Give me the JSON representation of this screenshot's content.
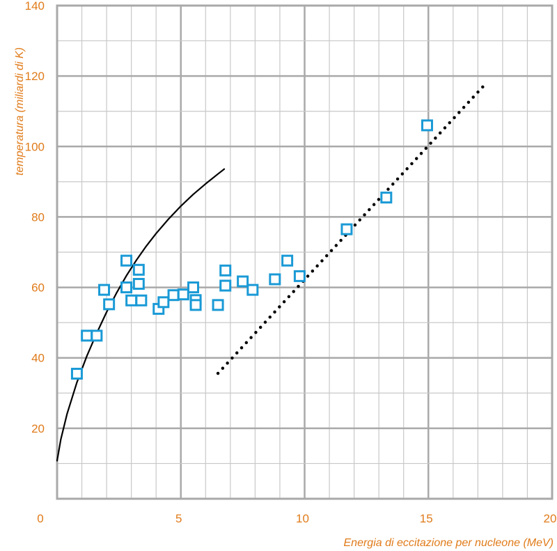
{
  "chart_data": {
    "type": "scatter",
    "title": "",
    "xlabel": "Energia di eccitazione per nucleone (MeV)",
    "ylabel": "temperatura (miliardi di K)",
    "xlim": [
      0,
      20
    ],
    "ylim": [
      0,
      140
    ],
    "x_ticks": [
      0,
      5,
      10,
      15,
      20
    ],
    "y_ticks": [
      20,
      40,
      60,
      80,
      100,
      120,
      140
    ],
    "grid": true,
    "colors": {
      "axis_text": "#e07b1a",
      "markers": "#1a9ad6",
      "grid": "#c8c8c8",
      "grid_major": "#a9a9a9",
      "curve": "#000000"
    },
    "series": [
      {
        "kind": "markers",
        "marker": "hollow-square",
        "points": [
          [
            0.8,
            35.5
          ],
          [
            1.2,
            46.3
          ],
          [
            1.6,
            46.3
          ],
          [
            1.9,
            59.3
          ],
          [
            2.1,
            55.2
          ],
          [
            2.8,
            67.6
          ],
          [
            2.8,
            60.0
          ],
          [
            3.0,
            56.3
          ],
          [
            3.3,
            65.0
          ],
          [
            3.3,
            61.0
          ],
          [
            3.4,
            56.3
          ],
          [
            4.1,
            53.9
          ],
          [
            4.3,
            55.8
          ],
          [
            4.7,
            57.8
          ],
          [
            5.1,
            58.0
          ],
          [
            5.5,
            60.0
          ],
          [
            5.6,
            56.4
          ],
          [
            5.6,
            55.0
          ],
          [
            6.5,
            55.0
          ],
          [
            6.8,
            64.8
          ],
          [
            6.8,
            60.5
          ],
          [
            7.5,
            61.7
          ],
          [
            7.9,
            59.3
          ],
          [
            8.8,
            62.3
          ],
          [
            9.3,
            67.6
          ],
          [
            9.8,
            63.2
          ],
          [
            11.7,
            76.5
          ],
          [
            13.3,
            85.5
          ],
          [
            14.95,
            106.0
          ]
        ]
      },
      {
        "kind": "curve",
        "style": "solid",
        "points": [
          [
            0.0,
            10.8
          ],
          [
            0.15,
            16.8
          ],
          [
            0.4,
            24.0
          ],
          [
            0.8,
            33.0
          ],
          [
            1.2,
            40.5
          ],
          [
            1.6,
            47.0
          ],
          [
            2.0,
            53.0
          ],
          [
            2.4,
            58.4
          ],
          [
            2.8,
            63.3
          ],
          [
            3.2,
            67.7
          ],
          [
            3.6,
            71.7
          ],
          [
            4.0,
            75.3
          ],
          [
            4.5,
            79.4
          ],
          [
            5.0,
            83.1
          ],
          [
            5.5,
            86.4
          ],
          [
            6.0,
            89.4
          ],
          [
            6.5,
            92.2
          ],
          [
            6.75,
            93.6
          ]
        ]
      },
      {
        "kind": "trend",
        "style": "dotted",
        "points": [
          [
            6.5,
            35.6
          ],
          [
            17.3,
            117.7
          ]
        ]
      }
    ]
  }
}
